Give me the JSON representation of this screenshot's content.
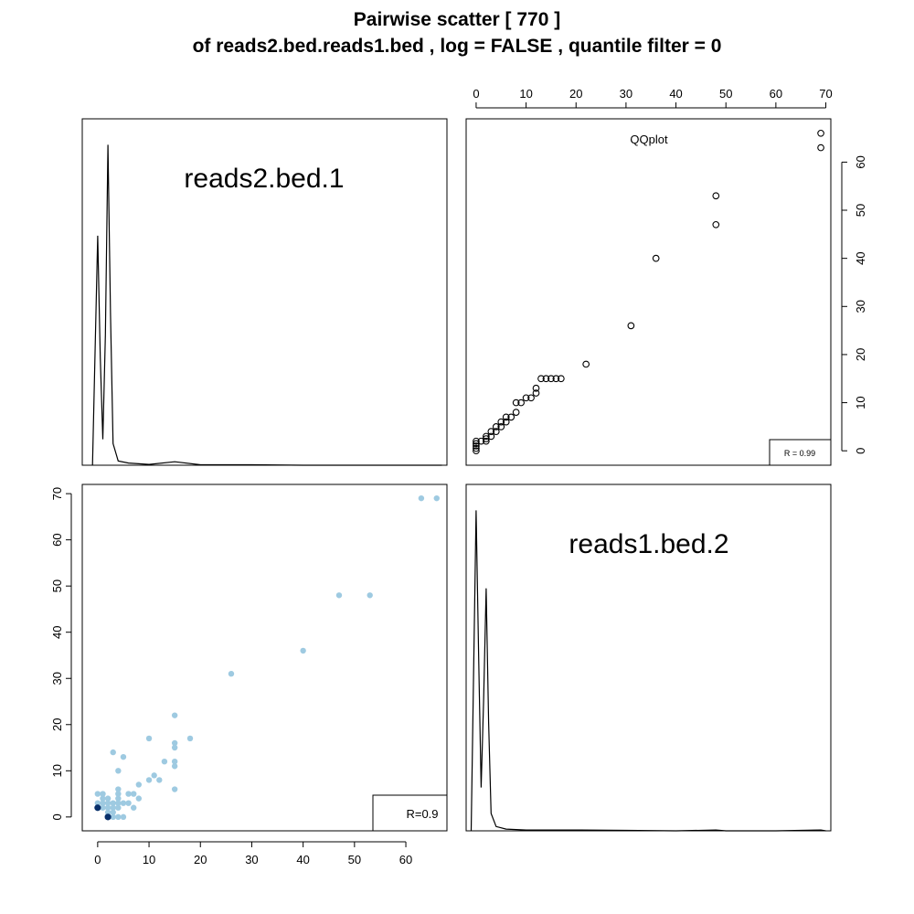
{
  "title_line1": "Pairwise scatter [ 770 ]",
  "title_line2": "of reads2.bed.reads1.bed , log = FALSE , quantile filter = 0",
  "diag_label_1": "reads2.bed.1",
  "diag_label_2": "reads1.bed.2",
  "qq_label": "QQplot",
  "qq_corr": "R = 0.99",
  "scatter_corr": "R=0.9",
  "colors": {
    "scatter_light": "#9ecae1",
    "scatter_dark": "#08306b",
    "line": "#000000"
  },
  "chart_data": [
    {
      "type": "line",
      "panel": "density reads2.bed.1",
      "x": [
        -1,
        0,
        0.5,
        1,
        1.5,
        2,
        2.5,
        3,
        4,
        6,
        10,
        15,
        20,
        30,
        40,
        50,
        60,
        67
      ],
      "y": [
        0.0,
        0.53,
        0.25,
        0.06,
        0.3,
        0.74,
        0.35,
        0.05,
        0.01,
        0.005,
        0.002,
        0.008,
        0.001,
        0.001,
        0.0,
        0.0,
        0.0,
        0.0
      ]
    },
    {
      "type": "scatter",
      "panel": "QQplot",
      "title": "QQplot",
      "x_ticks": [
        0,
        10,
        20,
        30,
        40,
        50,
        60,
        70
      ],
      "y_ticks": [
        0,
        10,
        20,
        30,
        40,
        50,
        60
      ],
      "xlim": [
        -2,
        71
      ],
      "ylim": [
        -3,
        69
      ],
      "points": [
        [
          0,
          0
        ],
        [
          0,
          0.5
        ],
        [
          0,
          1
        ],
        [
          0,
          1.5
        ],
        [
          0,
          2
        ],
        [
          1,
          2
        ],
        [
          2,
          2
        ],
        [
          2,
          2.5
        ],
        [
          2,
          3
        ],
        [
          3,
          3
        ],
        [
          3,
          4
        ],
        [
          4,
          4
        ],
        [
          4,
          5
        ],
        [
          5,
          5
        ],
        [
          5,
          6
        ],
        [
          6,
          6
        ],
        [
          6,
          7
        ],
        [
          7,
          7
        ],
        [
          8,
          8
        ],
        [
          8,
          10
        ],
        [
          9,
          10
        ],
        [
          10,
          11
        ],
        [
          11,
          11
        ],
        [
          12,
          12
        ],
        [
          12,
          13
        ],
        [
          13,
          15
        ],
        [
          14,
          15
        ],
        [
          15,
          15
        ],
        [
          16,
          15
        ],
        [
          17,
          15
        ],
        [
          22,
          18
        ],
        [
          31,
          26
        ],
        [
          36,
          40
        ],
        [
          48,
          47
        ],
        [
          48,
          53
        ],
        [
          69,
          63
        ],
        [
          69,
          66
        ]
      ],
      "annotation": "R = 0.99"
    },
    {
      "type": "scatter",
      "panel": "scatter reads2.bed.1 vs reads1.bed.2",
      "x_ticks": [
        0,
        10,
        20,
        30,
        40,
        50,
        60
      ],
      "y_ticks": [
        0,
        10,
        20,
        30,
        40,
        50,
        60,
        70
      ],
      "xlim": [
        -3,
        68
      ],
      "ylim": [
        -3,
        72
      ],
      "points_light": [
        [
          0,
          3
        ],
        [
          0,
          5
        ],
        [
          1,
          2
        ],
        [
          1,
          3
        ],
        [
          1,
          4
        ],
        [
          1,
          5
        ],
        [
          2,
          1
        ],
        [
          2,
          2
        ],
        [
          2,
          3
        ],
        [
          2,
          4
        ],
        [
          3,
          0
        ],
        [
          3,
          1
        ],
        [
          3,
          2
        ],
        [
          3,
          3
        ],
        [
          3,
          14
        ],
        [
          4,
          0
        ],
        [
          4,
          2
        ],
        [
          4,
          3
        ],
        [
          4,
          4
        ],
        [
          4,
          5
        ],
        [
          4,
          6
        ],
        [
          4,
          10
        ],
        [
          5,
          0
        ],
        [
          5,
          3
        ],
        [
          5,
          13
        ],
        [
          6,
          3
        ],
        [
          6,
          5
        ],
        [
          7,
          2
        ],
        [
          7,
          5
        ],
        [
          8,
          4
        ],
        [
          8,
          7
        ],
        [
          10,
          8
        ],
        [
          10,
          17
        ],
        [
          11,
          9
        ],
        [
          12,
          8
        ],
        [
          13,
          12
        ],
        [
          15,
          6
        ],
        [
          15,
          11
        ],
        [
          15,
          12
        ],
        [
          15,
          15
        ],
        [
          15,
          16
        ],
        [
          15,
          22
        ],
        [
          18,
          17
        ],
        [
          26,
          31
        ],
        [
          40,
          36
        ],
        [
          47,
          48
        ],
        [
          53,
          48
        ],
        [
          63,
          69
        ],
        [
          66,
          69
        ]
      ],
      "points_dark": [
        [
          0,
          2
        ],
        [
          2,
          0
        ]
      ],
      "annotation": "R=0.9"
    },
    {
      "type": "line",
      "panel": "density reads1.bed.2",
      "x": [
        -1,
        0,
        0.5,
        1,
        1.5,
        2,
        2.5,
        3,
        4,
        6,
        10,
        15,
        20,
        30,
        40,
        48,
        50,
        60,
        69,
        70
      ],
      "y": [
        0.0,
        0.74,
        0.4,
        0.1,
        0.3,
        0.56,
        0.25,
        0.04,
        0.01,
        0.004,
        0.002,
        0.002,
        0.002,
        0.001,
        0.0,
        0.002,
        0.0,
        0.0,
        0.002,
        0.0
      ]
    }
  ]
}
